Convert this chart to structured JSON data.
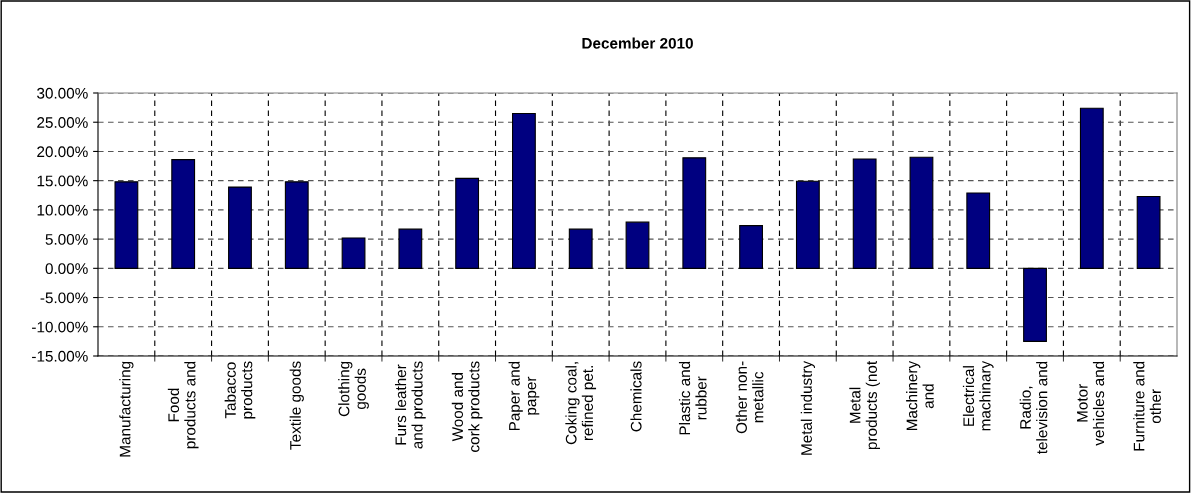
{
  "chart_data": {
    "type": "bar",
    "title": "December 2010",
    "categories": [
      "Manufacturing",
      "Food\nproducts and",
      "Tabacco\nproducts",
      "Textile goods",
      "Clothing\ngoods",
      "Furs leather\nand products",
      "Wood and\ncork products",
      "Paper and\npaper",
      "Coking coal,\nrefined pet.",
      "Chemicals",
      "Plastic and\nrubber",
      "Other non-\nmetallic",
      "Metal industry",
      "Metal\nproducts (not",
      "Machinery\nand",
      "Electrical\nmachinary",
      "Radio,\ntelevision and",
      "Motor\nvehicles and",
      "Furniture and\nother"
    ],
    "values": [
      14.8,
      18.6,
      13.9,
      14.8,
      5.2,
      6.7,
      15.4,
      26.5,
      6.7,
      7.9,
      18.9,
      7.3,
      14.9,
      18.7,
      19.0,
      12.9,
      -12.5,
      27.4,
      12.3
    ],
    "color": "#000080",
    "ylim": [
      -15,
      30
    ],
    "yticks": [
      {
        "value": -15,
        "label": "-15.00%"
      },
      {
        "value": -10,
        "label": "-10.00%"
      },
      {
        "value": -5,
        "label": "-5.00%"
      },
      {
        "value": 0,
        "label": "0.00%"
      },
      {
        "value": 5,
        "label": "5.00%"
      },
      {
        "value": 10,
        "label": "10.00%"
      },
      {
        "value": 15,
        "label": "15.00%"
      },
      {
        "value": 20,
        "label": "20.00%"
      },
      {
        "value": 25,
        "label": "25.00%"
      },
      {
        "value": 30,
        "label": "30.00%"
      }
    ],
    "grid": true
  }
}
